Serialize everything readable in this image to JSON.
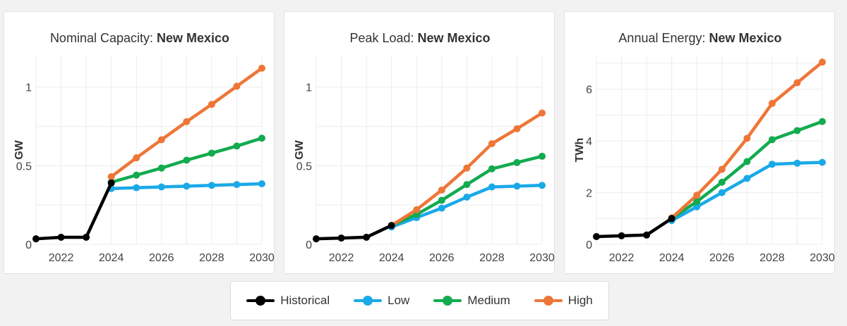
{
  "colors": {
    "Historical": "#000000",
    "Low": "#1aa9e8",
    "Medium": "#12ab4f",
    "High": "#ee7637"
  },
  "legend": {
    "items": [
      {
        "label": "Historical",
        "key": "Historical"
      },
      {
        "label": "Low",
        "key": "Low"
      },
      {
        "label": "Medium",
        "key": "Medium"
      },
      {
        "label": "High",
        "key": "High"
      }
    ]
  },
  "chart_data": [
    {
      "type": "line",
      "title_prefix": "Nominal Capacity: ",
      "title_bold": "New Mexico",
      "ylabel": "GW",
      "xlim": [
        2021,
        2030
      ],
      "ylim": [
        0,
        1.2
      ],
      "xticks": [
        2022,
        2024,
        2026,
        2028,
        2030
      ],
      "yticks": [
        0,
        0.5,
        1
      ],
      "ytick_labels": [
        "0",
        "0.5",
        "1"
      ],
      "series": [
        {
          "name": "Historical",
          "x": [
            2021,
            2022,
            2023,
            2024
          ],
          "y": [
            0.035,
            0.045,
            0.045,
            0.39
          ]
        },
        {
          "name": "Low",
          "x": [
            2024,
            2025,
            2026,
            2027,
            2028,
            2029,
            2030
          ],
          "y": [
            0.355,
            0.36,
            0.365,
            0.37,
            0.375,
            0.38,
            0.385
          ]
        },
        {
          "name": "Medium",
          "x": [
            2024,
            2025,
            2026,
            2027,
            2028,
            2029,
            2030
          ],
          "y": [
            0.395,
            0.44,
            0.485,
            0.535,
            0.58,
            0.625,
            0.675
          ]
        },
        {
          "name": "High",
          "x": [
            2024,
            2025,
            2026,
            2027,
            2028,
            2029,
            2030
          ],
          "y": [
            0.43,
            0.55,
            0.665,
            0.78,
            0.89,
            1.005,
            1.12
          ]
        }
      ]
    },
    {
      "type": "line",
      "title_prefix": "Peak Load: ",
      "title_bold": "New Mexico",
      "ylabel": "GW",
      "xlim": [
        2021,
        2030
      ],
      "ylim": [
        0,
        1.2
      ],
      "xticks": [
        2022,
        2024,
        2026,
        2028,
        2030
      ],
      "yticks": [
        0,
        0.5,
        1
      ],
      "ytick_labels": [
        "0",
        "0.5",
        "1"
      ],
      "series": [
        {
          "name": "Historical",
          "x": [
            2021,
            2022,
            2023,
            2024
          ],
          "y": [
            0.035,
            0.04,
            0.045,
            0.12
          ]
        },
        {
          "name": "Low",
          "x": [
            2024,
            2025,
            2026,
            2027,
            2028,
            2029,
            2030
          ],
          "y": [
            0.11,
            0.17,
            0.23,
            0.3,
            0.365,
            0.37,
            0.375
          ]
        },
        {
          "name": "Medium",
          "x": [
            2024,
            2025,
            2026,
            2027,
            2028,
            2029,
            2030
          ],
          "y": [
            0.12,
            0.19,
            0.28,
            0.38,
            0.48,
            0.52,
            0.56
          ]
        },
        {
          "name": "High",
          "x": [
            2024,
            2025,
            2026,
            2027,
            2028,
            2029,
            2030
          ],
          "y": [
            0.12,
            0.22,
            0.345,
            0.485,
            0.64,
            0.735,
            0.835
          ]
        }
      ]
    },
    {
      "type": "line",
      "title_prefix": "Annual Energy: ",
      "title_bold": "New Mexico",
      "ylabel": "TWh",
      "xlim": [
        2021,
        2030
      ],
      "ylim": [
        0,
        7.3
      ],
      "xticks": [
        2022,
        2024,
        2026,
        2028,
        2030
      ],
      "yticks": [
        0,
        2,
        4,
        6
      ],
      "ytick_labels": [
        "0",
        "2",
        "4",
        "6"
      ],
      "series": [
        {
          "name": "Historical",
          "x": [
            2021,
            2022,
            2023,
            2024
          ],
          "y": [
            0.3,
            0.33,
            0.36,
            1.0
          ]
        },
        {
          "name": "Low",
          "x": [
            2024,
            2025,
            2026,
            2027,
            2028,
            2029,
            2030
          ],
          "y": [
            0.92,
            1.45,
            2.0,
            2.55,
            3.1,
            3.14,
            3.17
          ]
        },
        {
          "name": "Medium",
          "x": [
            2024,
            2025,
            2026,
            2027,
            2028,
            2029,
            2030
          ],
          "y": [
            1.0,
            1.65,
            2.4,
            3.2,
            4.05,
            4.4,
            4.75
          ]
        },
        {
          "name": "High",
          "x": [
            2024,
            2025,
            2026,
            2027,
            2028,
            2029,
            2030
          ],
          "y": [
            1.02,
            1.9,
            2.9,
            4.1,
            5.45,
            6.25,
            7.05
          ]
        }
      ]
    }
  ]
}
